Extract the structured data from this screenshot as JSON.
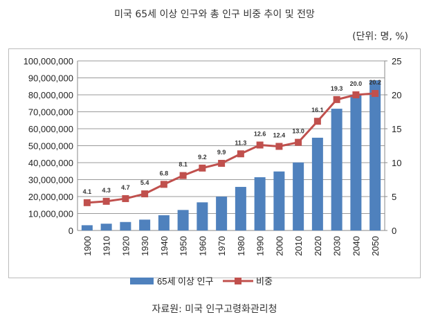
{
  "chart_data": {
    "type": "bar+line",
    "title": "미국 65세 이상 인구와 총 인구 비중 추이 및 전망",
    "unit_note": "(단위: 명, %)",
    "source": "자료원: 미국 인구고령화관리청",
    "categories": [
      "1900",
      "1910",
      "1920",
      "1930",
      "1940",
      "1950",
      "1960",
      "1970",
      "1980",
      "1990",
      "2000",
      "2010",
      "2020",
      "2030",
      "2040",
      "2050"
    ],
    "series": [
      {
        "name": "65세 이상 인구",
        "type": "bar",
        "axis": "left",
        "color": "#4f81bd",
        "values": [
          3100000,
          4000000,
          5000000,
          6400000,
          9000000,
          12100000,
          16600000,
          20000000,
          25700000,
          31400000,
          34800000,
          40100000,
          54700000,
          71800000,
          80100000,
          88600000
        ]
      },
      {
        "name": "비중",
        "type": "line",
        "axis": "right",
        "color": "#c0504d",
        "values": [
          4.1,
          4.3,
          4.7,
          5.4,
          6.8,
          8.1,
          9.2,
          9.9,
          11.3,
          12.6,
          12.4,
          13.0,
          16.1,
          19.3,
          20.0,
          20.2
        ],
        "labels": [
          "4.1",
          "4.3",
          "4.7",
          "5.4",
          "6.8",
          "8.1",
          "9.2",
          "9.9",
          "11.3",
          "12.6",
          "12.4",
          "13.0",
          "16.1",
          "19.3",
          "20.0",
          "20.2"
        ]
      }
    ],
    "left_axis": {
      "range": [
        0,
        100000000
      ],
      "ticks": [
        "0",
        "10,000,000",
        "20,000,000",
        "30,000,000",
        "40,000,000",
        "50,000,000",
        "60,000,000",
        "70,000,000",
        "80,000,000",
        "90,000,000",
        "100,000,000"
      ]
    },
    "right_axis": {
      "range": [
        0,
        25
      ],
      "ticks": [
        "0",
        "5",
        "10",
        "15",
        "20",
        "25"
      ]
    },
    "grid": true,
    "legend": "bottom"
  }
}
